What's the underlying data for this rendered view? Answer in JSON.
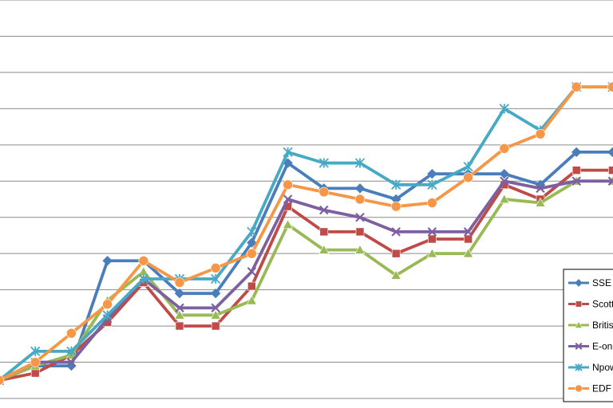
{
  "chart_data": {
    "type": "line",
    "x": [
      0,
      1,
      2,
      3,
      4,
      5,
      6,
      7,
      8,
      9,
      10,
      11,
      12,
      13,
      14,
      15,
      16,
      17
    ],
    "ylim": [
      0,
      11
    ],
    "grid": true,
    "legend_position": "bottom-right",
    "series": [
      {
        "name": "SSE",
        "color": "#4a7ebb",
        "marker": "diamond",
        "values": [
          0.5,
          0.9,
          0.9,
          3.8,
          3.8,
          2.9,
          2.9,
          4.3,
          6.5,
          5.8,
          5.8,
          5.5,
          6.2,
          6.2,
          6.2,
          5.9,
          6.8,
          6.8
        ]
      },
      {
        "name": "Scott",
        "color": "#be4b48",
        "marker": "square",
        "values": [
          0.5,
          0.7,
          1.2,
          2.1,
          3.2,
          2.0,
          2.0,
          3.1,
          5.3,
          4.6,
          4.6,
          4.0,
          4.4,
          4.4,
          5.9,
          5.5,
          6.3,
          6.3
        ]
      },
      {
        "name": "Britis",
        "color": "#98b954",
        "marker": "triangle",
        "values": [
          0.5,
          0.9,
          1.2,
          2.7,
          3.5,
          2.3,
          2.3,
          2.7,
          4.8,
          4.1,
          4.1,
          3.4,
          4.0,
          4.0,
          5.5,
          5.4,
          6.0,
          6.0
        ]
      },
      {
        "name": "E-on",
        "color": "#7d60a0",
        "marker": "x",
        "values": [
          0.5,
          1.0,
          1.0,
          2.2,
          3.3,
          2.5,
          2.5,
          3.5,
          5.5,
          5.2,
          5.0,
          4.6,
          4.6,
          4.6,
          6.0,
          5.8,
          6.0,
          6.0
        ]
      },
      {
        "name": "Npow",
        "color": "#46aac5",
        "marker": "star",
        "values": [
          0.5,
          1.3,
          1.3,
          2.3,
          3.3,
          3.3,
          3.3,
          4.6,
          6.8,
          6.5,
          6.5,
          5.9,
          5.9,
          6.4,
          8.0,
          7.4,
          8.6,
          8.6
        ]
      },
      {
        "name": "EDF",
        "color": "#f79646",
        "marker": "circle",
        "values": [
          0.5,
          1.0,
          1.8,
          2.6,
          3.8,
          3.2,
          3.6,
          4.0,
          5.9,
          5.7,
          5.5,
          5.3,
          5.4,
          6.1,
          6.9,
          7.3,
          8.6,
          8.6
        ]
      }
    ]
  }
}
